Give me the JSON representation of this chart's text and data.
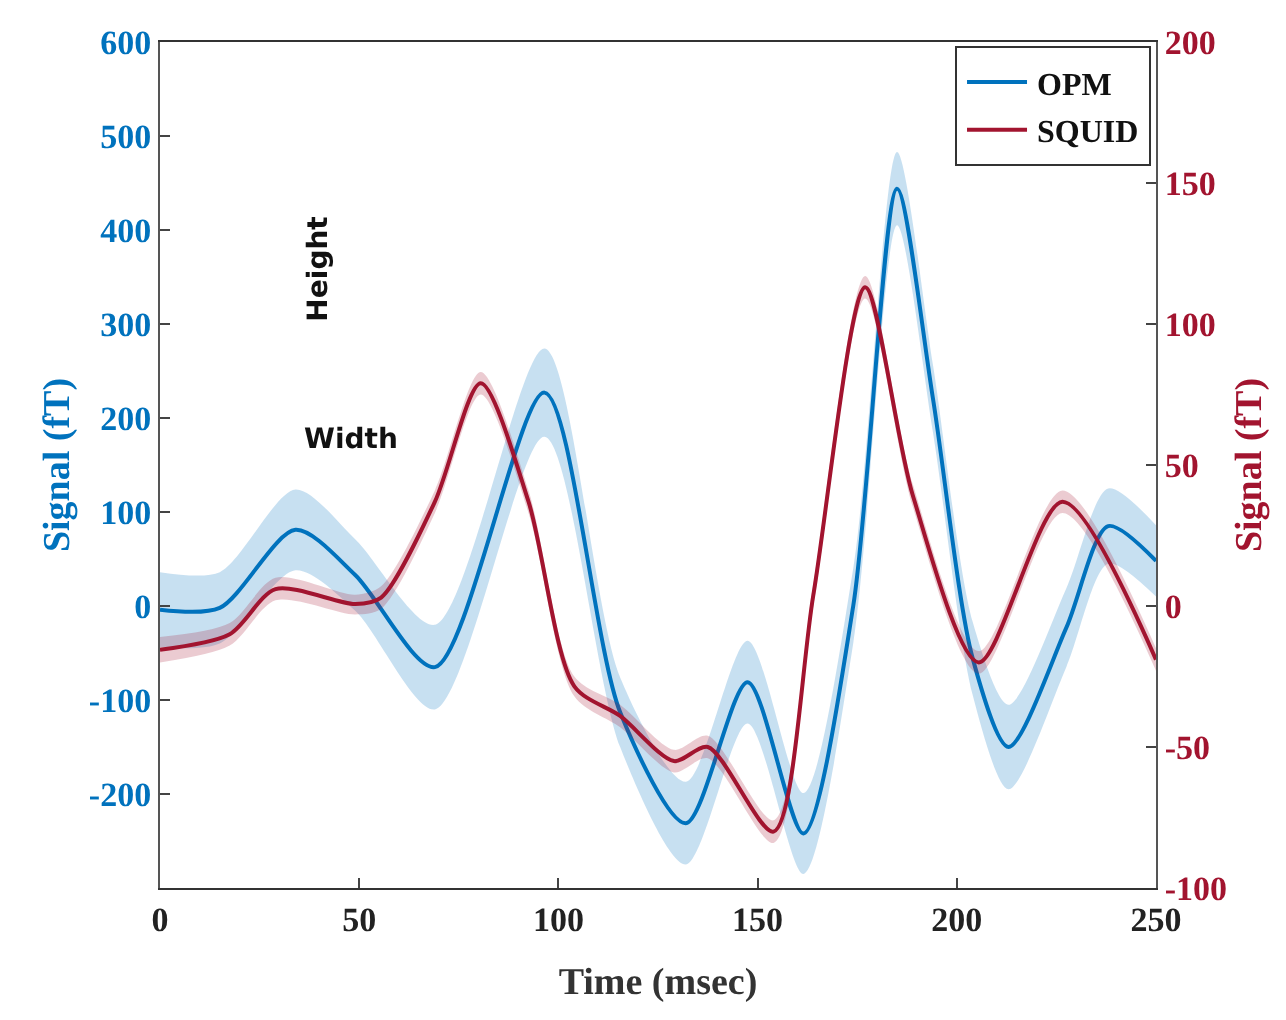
{
  "chart_data": {
    "type": "line",
    "xlabel": "Time (msec)",
    "ylabel": "Signal (fT)",
    "y2label": "Signal (fT)",
    "xlim": [
      0,
      250
    ],
    "xticks": [
      0,
      50,
      100,
      150,
      200,
      250
    ],
    "ylim": [
      -300,
      600
    ],
    "yticks": [
      -200,
      -100,
      0,
      100,
      200,
      300,
      400,
      500,
      600
    ],
    "y2lim": [
      -100,
      200
    ],
    "y2ticks": [
      -100,
      -50,
      0,
      50,
      100,
      150,
      200
    ],
    "legend": "top right",
    "grid": false,
    "marker": "none",
    "line_style": "solid",
    "annotations": [
      "Height",
      "Width"
    ],
    "series": [
      {
        "name": "OPM",
        "color": "#0072bd",
        "x": [
          0,
          15,
          34,
          49,
          69,
          96.5,
          115.5,
          132,
          147.5,
          161.5,
          174,
          185,
          194,
          204,
          213,
          227.5,
          238,
          250
        ],
        "values": [
          -4,
          -2,
          81,
          33,
          -65,
          227,
          -113,
          -231,
          -81,
          -242,
          0,
          444,
          221,
          -56,
          -150,
          -23,
          85,
          48
        ],
        "lower": [
          -44,
          -40,
          38,
          -5,
          -110,
          180,
          -150,
          -275,
          -125,
          -285,
          -40,
          405,
          185,
          -95,
          -195,
          -65,
          45,
          10
        ],
        "upper": [
          36,
          36,
          124,
          71,
          -20,
          274,
          -76,
          -187,
          -37,
          -199,
          40,
          483,
          257,
          -17,
          -105,
          19,
          125,
          86
        ]
      },
      {
        "name": "SQUID",
        "color": "#a2142f",
        "axis": "y2",
        "x": [
          0,
          17.5,
          29,
          49,
          55.5,
          69,
          80.5,
          92.5,
          104,
          115.5,
          129,
          137.5,
          154,
          164,
          177,
          189,
          205.5,
          226.5,
          250
        ],
        "values": [
          -15.5,
          -10,
          6,
          0.7,
          3,
          37,
          79,
          37,
          -28.5,
          -39,
          -55,
          -50,
          -80,
          4,
          113,
          39,
          -20,
          37,
          -19
        ],
        "lower": [
          -20,
          -14,
          2,
          -3,
          -1,
          33,
          75,
          33,
          -32,
          -43,
          -59,
          -54,
          -84,
          0,
          109,
          35,
          -24,
          33,
          -23
        ],
        "upper": [
          -11,
          -6,
          10,
          4,
          7,
          41,
          83,
          41,
          -25,
          -35,
          -51,
          -46,
          -76,
          8,
          117,
          43,
          -16,
          41,
          -15
        ]
      }
    ]
  }
}
